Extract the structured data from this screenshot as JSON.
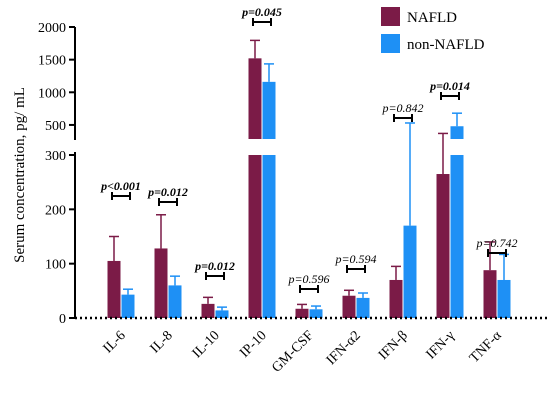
{
  "chart_data": {
    "type": "bar",
    "ylabel": "Serum concentration, pg/ mL",
    "categories": [
      "IL-6",
      "IL-8",
      "IL-10",
      "IP-10",
      "GM-CSF",
      "IFN-α2",
      "IFN-β",
      "IFN-γ",
      "TNF-α"
    ],
    "series": [
      {
        "name": "NAFLD",
        "color": "#7B1B47",
        "values": [
          105,
          128,
          26,
          1520,
          17,
          41,
          70,
          265,
          88
        ],
        "error": [
          45,
          62,
          12,
          275,
          8,
          10,
          25,
          105,
          52
        ]
      },
      {
        "name": "non-NAFLD",
        "color": "#1E90F5",
        "values": [
          43,
          60,
          14,
          1160,
          16,
          37,
          170,
          480,
          70
        ],
        "error": [
          10,
          17,
          6,
          275,
          6,
          9,
          360,
          200,
          47
        ]
      }
    ],
    "p_values": [
      "p<0.001",
      "p=0.012",
      "p=0.012",
      "p=0.045",
      "p=0.596",
      "p=0.594",
      "p=0.842",
      "p=0.014",
      "p=0.742"
    ],
    "p_significant": [
      true,
      true,
      true,
      true,
      false,
      false,
      false,
      true,
      false
    ],
    "lower_axis": {
      "range": [
        0,
        300
      ],
      "ticks": [
        "0",
        "100",
        "200",
        "300"
      ]
    },
    "upper_axis": {
      "range": [
        300,
        2000
      ],
      "ticks": [
        "500",
        "1000",
        "1500",
        "2000"
      ]
    },
    "legend_position": "top-right",
    "baseline": "dotted",
    "grid": false
  }
}
